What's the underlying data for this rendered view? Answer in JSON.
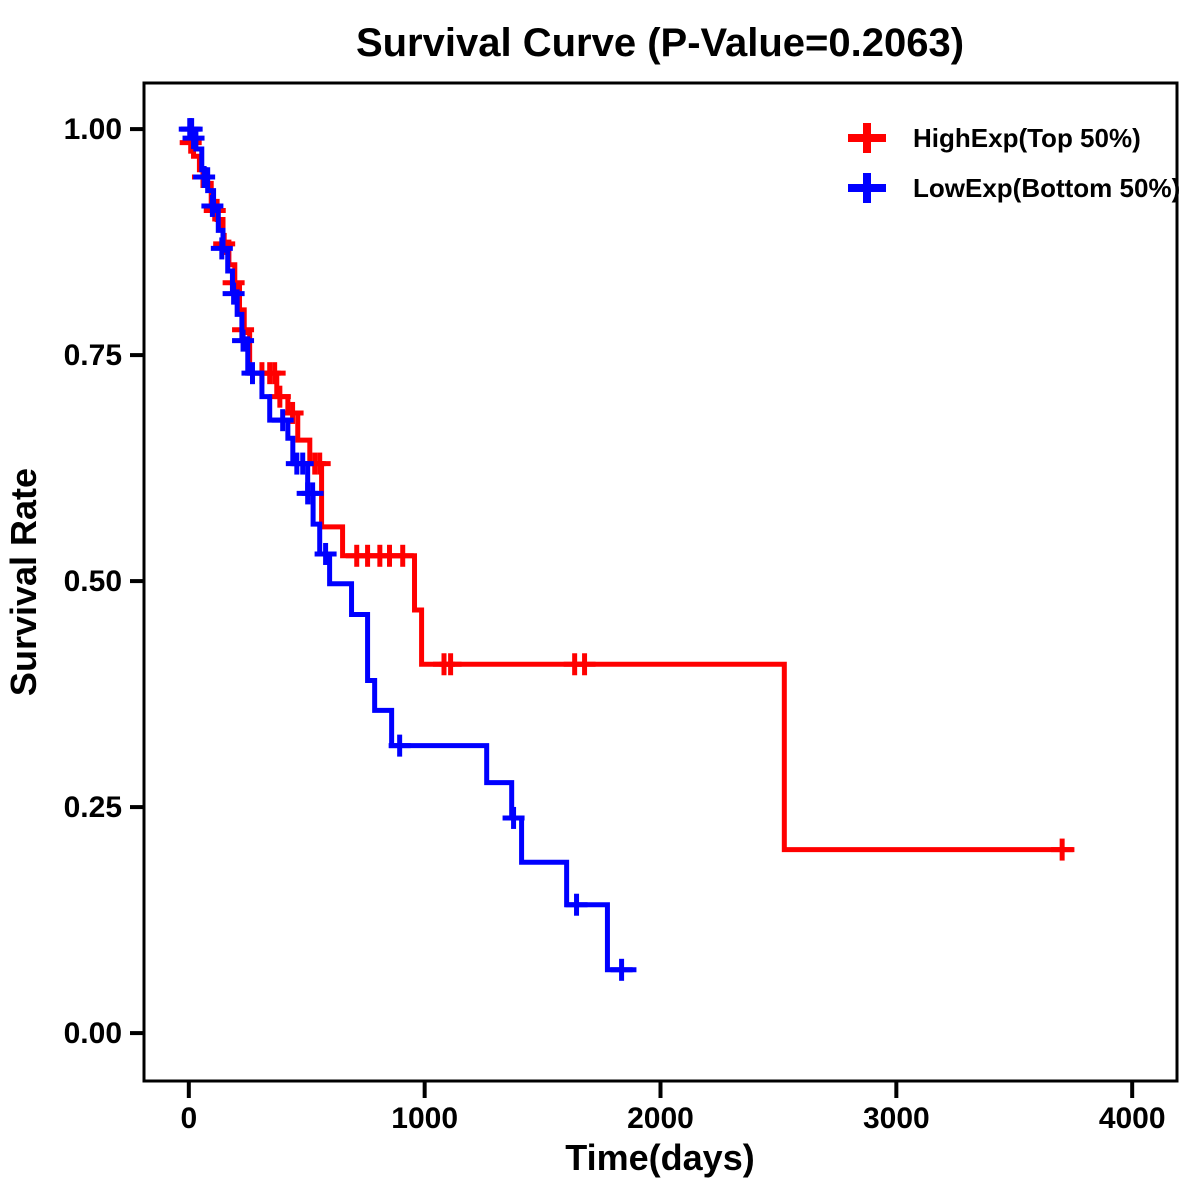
{
  "page": {
    "background": "#ffffff",
    "text_color": "#000000",
    "panel_border_color": "#000000"
  },
  "chart_data": {
    "type": "line",
    "subtype": "kaplan-meier-step-survival",
    "title": "Survival Curve (P-Value=0.2063)",
    "p_value": "0.2063",
    "xlabel": "Time(days)",
    "ylabel": "Survival Rate",
    "grid": false,
    "legend_position": "top-right-inside",
    "xlim": [
      -190,
      4190
    ],
    "ylim": [
      -0.053,
      1.051
    ],
    "x_ticks": [
      0,
      1000,
      2000,
      3000,
      4000
    ],
    "x_tick_labels": [
      "0",
      "1000",
      "2000",
      "3000",
      "4000"
    ],
    "y_ticks": [
      0,
      0.25,
      0.5,
      0.75,
      1
    ],
    "y_tick_labels": [
      "0.00",
      "0.25",
      "0.50",
      "0.75",
      "1.00"
    ],
    "series": [
      {
        "name": "HighExp(Top 50%)",
        "color": "#ff0000",
        "steps": [
          [
            0,
            0.985
          ],
          [
            20,
            0.97
          ],
          [
            45,
            0.955
          ],
          [
            70,
            0.94
          ],
          [
            95,
            0.92
          ],
          [
            120,
            0.9
          ],
          [
            145,
            0.875
          ],
          [
            170,
            0.85
          ],
          [
            195,
            0.825
          ],
          [
            215,
            0.8
          ],
          [
            235,
            0.775
          ],
          [
            258,
            0.73
          ],
          [
            373,
            0.704
          ],
          [
            420,
            0.686
          ],
          [
            462,
            0.656
          ],
          [
            513,
            0.63
          ],
          [
            563,
            0.56
          ],
          [
            652,
            0.528
          ],
          [
            957,
            0.468
          ],
          [
            987,
            0.408
          ],
          [
            2525,
            0.203
          ]
        ],
        "end_time": 3755,
        "censors": [
          [
            8,
            0.985
          ],
          [
            60,
            0.947
          ],
          [
            110,
            0.91
          ],
          [
            150,
            0.873
          ],
          [
            190,
            0.83
          ],
          [
            230,
            0.778
          ],
          [
            310,
            0.73
          ],
          [
            343,
            0.73
          ],
          [
            364,
            0.73
          ],
          [
            386,
            0.704
          ],
          [
            440,
            0.686
          ],
          [
            534,
            0.63
          ],
          [
            555,
            0.63
          ],
          [
            712,
            0.528
          ],
          [
            758,
            0.528
          ],
          [
            810,
            0.528
          ],
          [
            851,
            0.528
          ],
          [
            907,
            0.528
          ],
          [
            1082,
            0.408
          ],
          [
            1110,
            0.408
          ],
          [
            1636,
            0.408
          ],
          [
            1678,
            0.408
          ],
          [
            3703,
            0.203
          ]
        ]
      },
      {
        "name": "LowExp(Bottom 50%)",
        "color": "#0000ff",
        "steps": [
          [
            0,
            1.0
          ],
          [
            30,
            0.978
          ],
          [
            55,
            0.955
          ],
          [
            80,
            0.932
          ],
          [
            105,
            0.91
          ],
          [
            125,
            0.888
          ],
          [
            145,
            0.866
          ],
          [
            165,
            0.843
          ],
          [
            185,
            0.82
          ],
          [
            205,
            0.795
          ],
          [
            225,
            0.768
          ],
          [
            250,
            0.73
          ],
          [
            310,
            0.704
          ],
          [
            343,
            0.678
          ],
          [
            420,
            0.658
          ],
          [
            441,
            0.63
          ],
          [
            504,
            0.597
          ],
          [
            527,
            0.563
          ],
          [
            555,
            0.53
          ],
          [
            597,
            0.497
          ],
          [
            690,
            0.463
          ],
          [
            758,
            0.39
          ],
          [
            788,
            0.357
          ],
          [
            860,
            0.318
          ],
          [
            1263,
            0.277
          ],
          [
            1369,
            0.238
          ],
          [
            1411,
            0.189
          ],
          [
            1602,
            0.142
          ],
          [
            1775,
            0.07
          ]
        ],
        "end_time": 1898,
        "censors": [
          [
            4,
            1.0
          ],
          [
            12,
            1.0
          ],
          [
            20,
            0.99
          ],
          [
            65,
            0.947
          ],
          [
            100,
            0.915
          ],
          [
            140,
            0.868
          ],
          [
            190,
            0.818
          ],
          [
            230,
            0.766
          ],
          [
            270,
            0.73
          ],
          [
            398,
            0.678
          ],
          [
            458,
            0.63
          ],
          [
            483,
            0.63
          ],
          [
            504,
            0.597
          ],
          [
            525,
            0.597
          ],
          [
            580,
            0.53
          ],
          [
            894,
            0.318
          ],
          [
            1377,
            0.238
          ],
          [
            1644,
            0.142
          ],
          [
            1835,
            0.07
          ]
        ]
      }
    ]
  }
}
